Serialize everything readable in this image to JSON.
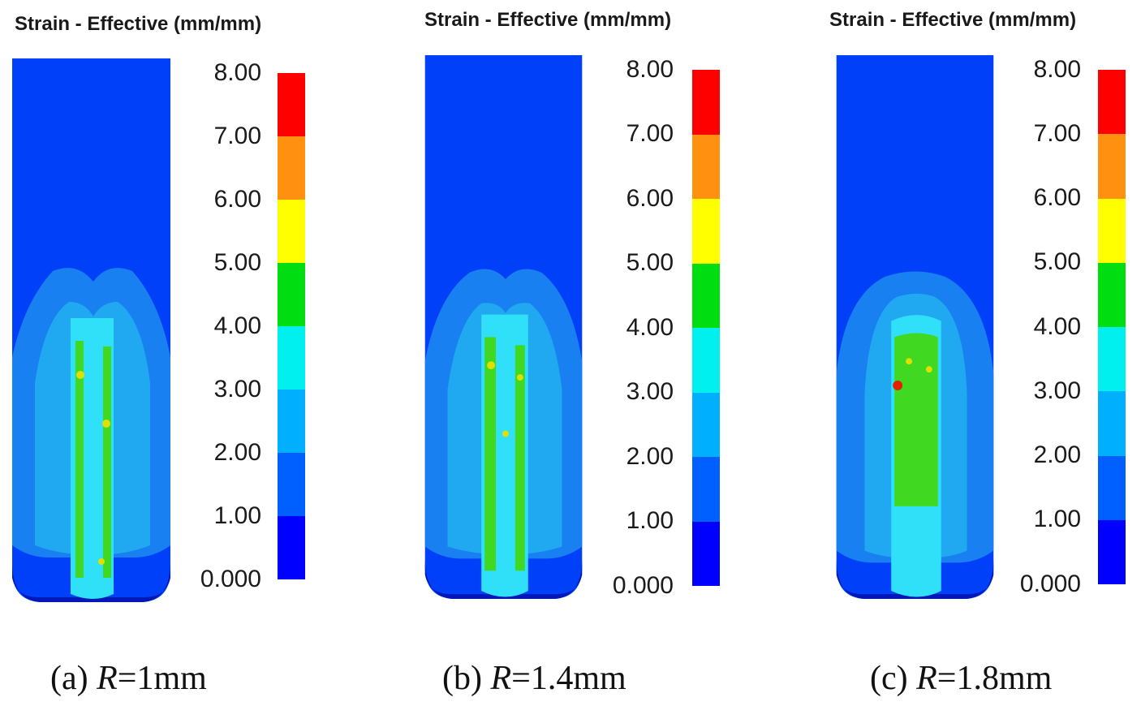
{
  "title": "Strain - Effective (mm/mm)",
  "legend": {
    "ticks": [
      "8.00",
      "7.00",
      "6.00",
      "5.00",
      "4.00",
      "3.00",
      "2.00",
      "1.00",
      "0.000"
    ],
    "colors": [
      "#ff0000",
      "#ff9010",
      "#ffff00",
      "#00dd10",
      "#00f0f0",
      "#00b0ff",
      "#0060ff",
      "#0000ff"
    ]
  },
  "panels": [
    {
      "label_prefix": "(a) ",
      "label_var": "R",
      "label_value": "=1mm"
    },
    {
      "label_prefix": "(b) ",
      "label_var": "R",
      "label_value": "=1.4mm"
    },
    {
      "label_prefix": "(c) ",
      "label_var": "R",
      "label_value": "=1.8mm"
    }
  ]
}
